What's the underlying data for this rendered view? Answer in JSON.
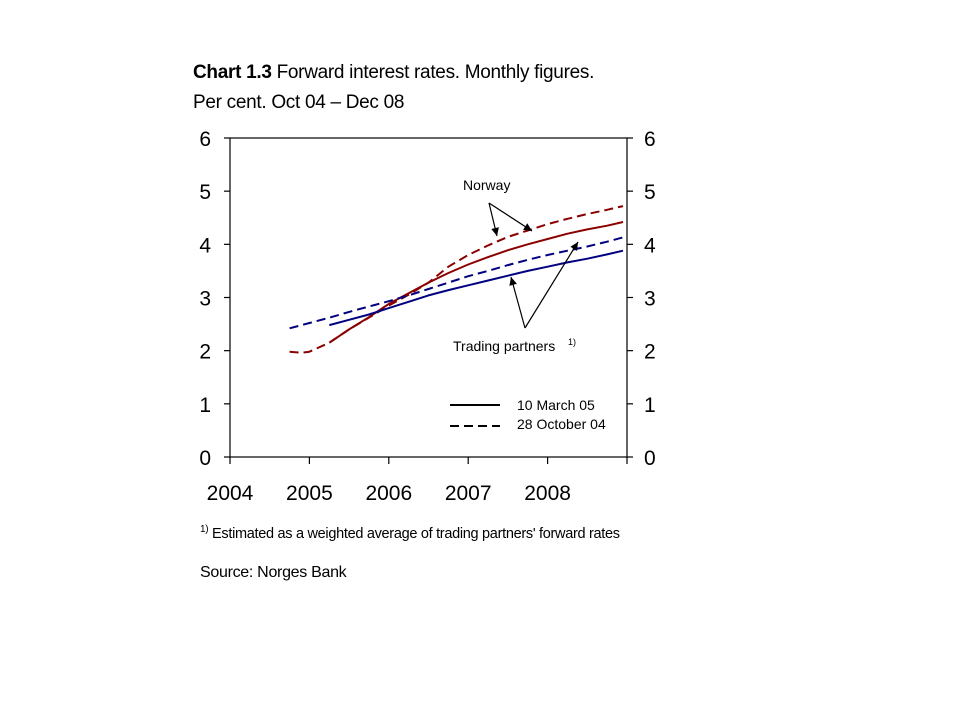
{
  "title": {
    "number": "Chart 1.3",
    "text_line1": " Forward interest rates. Monthly figures.",
    "text_line2": "Per cent. Oct 04 – Dec 08"
  },
  "footnote": {
    "marker": "1)",
    "text": " Estimated as a weighted average of trading partners' forward rates"
  },
  "source": "Source: Norges Bank",
  "colors": {
    "norway": "#8b0000",
    "trading_partners": "#000080",
    "axis": "#000000"
  },
  "chart_data": {
    "type": "line",
    "x_ticks": [
      "2004",
      "2005",
      "2006",
      "2007",
      "2008"
    ],
    "y_ticks_left": [
      "0",
      "1",
      "2",
      "3",
      "4",
      "5",
      "6"
    ],
    "y_ticks_right": [
      "0",
      "1",
      "2",
      "3",
      "4",
      "5",
      "6"
    ],
    "xlim": [
      2004.0,
      2009.0
    ],
    "ylim": [
      0,
      6
    ],
    "grid": false,
    "legend_position": "lower-right inside plot",
    "legend": [
      {
        "label": "10 March 05",
        "style": "solid"
      },
      {
        "label": "28 October 04",
        "style": "dashed"
      }
    ],
    "annotations": [
      {
        "text": "Norway"
      },
      {
        "text": "Trading partners",
        "superscript": "1)"
      }
    ],
    "series": [
      {
        "group": "Norway",
        "style": "dashed",
        "color": "#8b0000",
        "x": [
          2004.75,
          2004.9,
          2005.0,
          2005.25,
          2005.5,
          2005.75,
          2006.0,
          2006.25,
          2006.5,
          2006.75,
          2007.0,
          2007.25,
          2007.5,
          2007.75,
          2008.0,
          2008.25,
          2008.5,
          2008.75,
          2008.95
        ],
        "y": [
          1.98,
          1.96,
          1.98,
          2.15,
          2.4,
          2.62,
          2.85,
          3.05,
          3.28,
          3.58,
          3.8,
          3.98,
          4.14,
          4.26,
          4.38,
          4.48,
          4.57,
          4.65,
          4.72
        ]
      },
      {
        "group": "Norway",
        "style": "solid",
        "color": "#8b0000",
        "x": [
          2005.25,
          2005.5,
          2005.75,
          2006.0,
          2006.25,
          2006.5,
          2006.75,
          2007.0,
          2007.25,
          2007.5,
          2007.75,
          2008.0,
          2008.25,
          2008.5,
          2008.75,
          2008.95
        ],
        "y": [
          2.15,
          2.4,
          2.63,
          2.88,
          3.08,
          3.28,
          3.46,
          3.62,
          3.76,
          3.89,
          4.0,
          4.1,
          4.2,
          4.28,
          4.35,
          4.42
        ]
      },
      {
        "group": "Trading partners",
        "style": "dashed",
        "color": "#000080",
        "x": [
          2004.75,
          2005.0,
          2005.25,
          2005.5,
          2005.75,
          2006.0,
          2006.25,
          2006.5,
          2006.75,
          2007.0,
          2007.25,
          2007.5,
          2007.75,
          2008.0,
          2008.25,
          2008.5,
          2008.75,
          2008.95
        ],
        "y": [
          2.42,
          2.52,
          2.62,
          2.73,
          2.83,
          2.93,
          3.04,
          3.16,
          3.28,
          3.4,
          3.5,
          3.61,
          3.71,
          3.8,
          3.88,
          3.96,
          4.05,
          4.13
        ]
      },
      {
        "group": "Trading partners",
        "style": "solid",
        "color": "#000080",
        "x": [
          2005.25,
          2005.5,
          2005.75,
          2006.0,
          2006.25,
          2006.5,
          2006.75,
          2007.0,
          2007.25,
          2007.5,
          2007.75,
          2008.0,
          2008.25,
          2008.5,
          2008.75,
          2008.95
        ],
        "y": [
          2.48,
          2.58,
          2.68,
          2.8,
          2.92,
          3.04,
          3.14,
          3.23,
          3.32,
          3.41,
          3.5,
          3.58,
          3.66,
          3.73,
          3.81,
          3.88
        ]
      }
    ]
  }
}
